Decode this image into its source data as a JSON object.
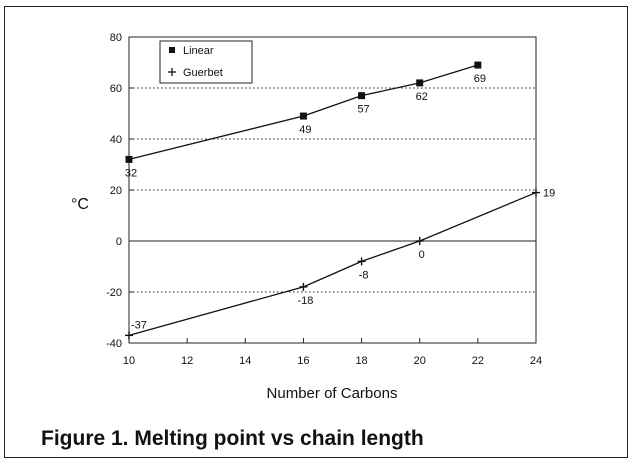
{
  "caption": "Figure 1. Melting point vs chain length",
  "chart_data": {
    "type": "line",
    "title": "",
    "xlabel": "Number of Carbons",
    "ylabel": "°C",
    "xlim": [
      10,
      24
    ],
    "ylim": [
      -40,
      80
    ],
    "xticks": [
      10,
      12,
      14,
      16,
      18,
      20,
      22,
      24
    ],
    "yticks": [
      -40,
      -20,
      0,
      20,
      40,
      60,
      80
    ],
    "grid": "dotted horizontal lines at 20, 40 and 60; solid line at 0; dotted line at -20",
    "legend": "top-left",
    "series": [
      {
        "name": "Linear",
        "marker": "square",
        "x": [
          10,
          16,
          18,
          20,
          22
        ],
        "y": [
          32,
          49,
          57,
          62,
          69
        ],
        "labels": [
          "32",
          "49",
          "57",
          "62",
          "69"
        ]
      },
      {
        "name": "Guerbet",
        "marker": "plus",
        "x": [
          10,
          16,
          18,
          20,
          24
        ],
        "y": [
          -37,
          -18,
          -8,
          0,
          19
        ],
        "labels": [
          "-37",
          "-18",
          "-8",
          "0",
          "19"
        ]
      }
    ]
  }
}
